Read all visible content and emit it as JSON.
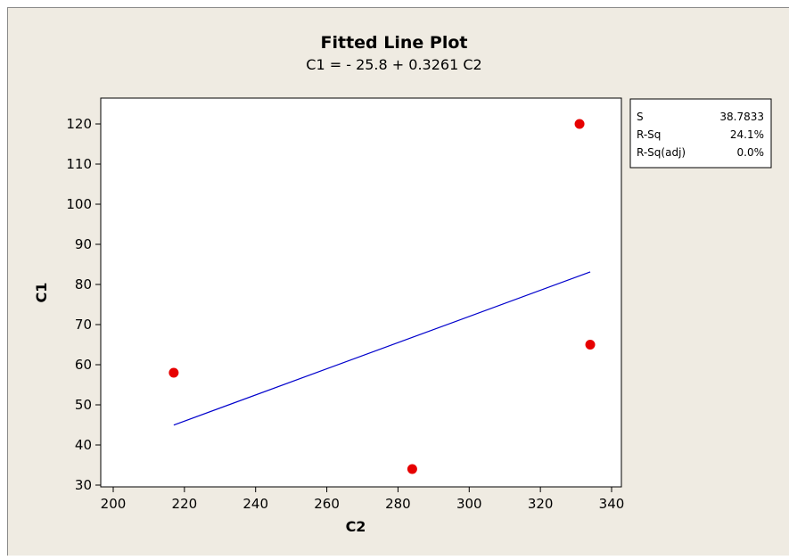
{
  "chart_data": {
    "type": "scatter",
    "title": "Fitted Line Plot",
    "subtitle": "C1 =  - 25.8 + 0.3261 C2",
    "xlabel": "C2",
    "ylabel": "C1",
    "xlim": [
      200,
      340
    ],
    "ylim": [
      30,
      120
    ],
    "x_ticks": [
      "200",
      "220",
      "240",
      "260",
      "280",
      "300",
      "320",
      "340"
    ],
    "y_ticks": [
      "30",
      "40",
      "50",
      "60",
      "70",
      "80",
      "90",
      "100",
      "110",
      "120"
    ],
    "series": [
      {
        "values": [
          {
            "x": 217,
            "y": 58
          },
          {
            "x": 284,
            "y": 34
          },
          {
            "x": 331,
            "y": 120
          },
          {
            "x": 334,
            "y": 65
          }
        ]
      }
    ],
    "fit": {
      "intercept": -25.8,
      "slope": 0.3261,
      "x_range": [
        217,
        334
      ]
    },
    "colors": {
      "points": "#e60000",
      "fit_line": "#0000cc"
    },
    "grid": false,
    "stats_box": [
      {
        "label": "S",
        "value": "38.7833"
      },
      {
        "label": "R-Sq",
        "value": "24.1%"
      },
      {
        "label": "R-Sq(adj)",
        "value": "0.0%"
      }
    ]
  }
}
